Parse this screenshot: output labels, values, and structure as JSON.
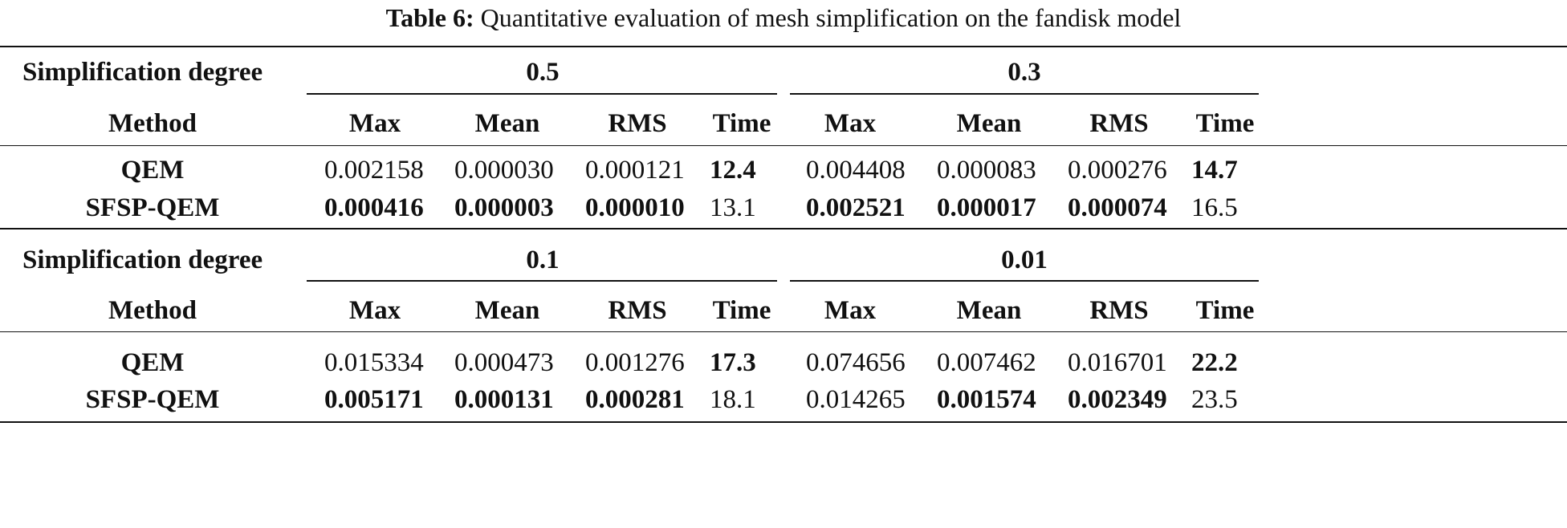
{
  "caption": {
    "label": "Table 6:",
    "text": "Quantitative evaluation of mesh simplification on the fandisk model"
  },
  "header": {
    "degree_label": "Simplification degree",
    "method_label": "Method",
    "metrics": [
      "Max",
      "Mean",
      "RMS",
      "Time"
    ]
  },
  "blocks": [
    {
      "degrees": [
        "0.5",
        "0.3"
      ],
      "rows": [
        {
          "method": "QEM",
          "values": [
            "0.002158",
            "0.000030",
            "0.000121",
            "12.4",
            "0.004408",
            "0.000083",
            "0.000276",
            "14.7"
          ],
          "bold": [
            false,
            false,
            false,
            true,
            false,
            false,
            false,
            true
          ]
        },
        {
          "method": "SFSP-QEM",
          "values": [
            "0.000416",
            "0.000003",
            "0.000010",
            "13.1",
            "0.002521",
            "0.000017",
            "0.000074",
            "16.5"
          ],
          "bold": [
            true,
            true,
            true,
            false,
            true,
            true,
            true,
            false
          ]
        }
      ]
    },
    {
      "degrees": [
        "0.1",
        "0.01"
      ],
      "rows": [
        {
          "method": "QEM",
          "values": [
            "0.015334",
            "0.000473",
            "0.001276",
            "17.3",
            "0.074656",
            "0.007462",
            "0.016701",
            "22.2"
          ],
          "bold": [
            false,
            false,
            false,
            true,
            false,
            false,
            false,
            true
          ]
        },
        {
          "method": "SFSP-QEM",
          "values": [
            "0.005171",
            "0.000131",
            "0.000281",
            "18.1",
            "0.014265",
            "0.001574",
            "0.002349",
            "23.5"
          ],
          "bold": [
            true,
            true,
            true,
            false,
            false,
            true,
            true,
            false
          ]
        }
      ]
    }
  ]
}
